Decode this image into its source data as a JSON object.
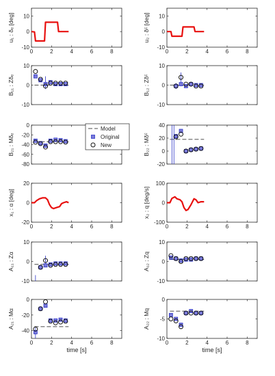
{
  "chart_data": [
    {
      "type": "line",
      "ylabel": "u₁ : δₑ [deg]",
      "ylim": [
        -10,
        15
      ],
      "yticks": [
        -10,
        0,
        10
      ],
      "xlim": [
        0,
        9
      ],
      "xticks": [
        0,
        2,
        4,
        6,
        8
      ],
      "x_tick_labels": true,
      "series": [
        {
          "type": "line",
          "color": "#e8100f",
          "points": [
            [
              0,
              0
            ],
            [
              0.3,
              -0.2
            ],
            [
              0.4,
              -6
            ],
            [
              1.3,
              -6
            ],
            [
              1.4,
              6
            ],
            [
              2.6,
              6
            ],
            [
              2.7,
              0
            ],
            [
              3.7,
              0
            ]
          ]
        }
      ]
    },
    {
      "type": "line",
      "ylabel": "u₂ : δᶜ [deg]",
      "ylim": [
        -10,
        15
      ],
      "yticks": [
        -10,
        0,
        10
      ],
      "xlim": [
        0,
        9
      ],
      "xticks": [
        0,
        2,
        4,
        6,
        8
      ],
      "x_tick_labels": true,
      "series": [
        {
          "type": "line",
          "color": "#e8100f",
          "points": [
            [
              0,
              0
            ],
            [
              0.4,
              0
            ],
            [
              0.5,
              -3
            ],
            [
              1.5,
              -3
            ],
            [
              1.6,
              3
            ],
            [
              2.7,
              3
            ],
            [
              2.8,
              0
            ],
            [
              3.7,
              0
            ]
          ]
        }
      ]
    },
    {
      "type": "scatter",
      "ylabel": "B₁₁ : Zδₑ",
      "ylim": [
        -10,
        10
      ],
      "yticks": [
        -10,
        0,
        10
      ],
      "xlim": [
        0,
        9
      ],
      "xticks": [
        0,
        2,
        4,
        6,
        8
      ],
      "x_tick_labels": false,
      "model_line": {
        "value": 0,
        "x0": 0.3,
        "x1": 3.7
      },
      "original": [
        [
          0.4,
          4.5
        ],
        [
          0.9,
          2.5
        ],
        [
          1.4,
          0.5
        ],
        [
          1.9,
          1.5
        ],
        [
          2.4,
          0.5
        ],
        [
          2.9,
          0.5
        ],
        [
          3.4,
          0.5
        ]
      ],
      "new": [
        [
          0.4,
          7
        ],
        [
          0.9,
          3
        ],
        [
          1.4,
          -0.5
        ],
        [
          1.9,
          1
        ],
        [
          2.4,
          1
        ],
        [
          2.9,
          1
        ],
        [
          3.4,
          1
        ]
      ],
      "errorbars": [
        [
          1.4,
          -2,
          4.5
        ]
      ]
    },
    {
      "type": "scatter",
      "ylabel": "B₁₂ : Zδᶜ",
      "ylim": [
        -10,
        10
      ],
      "yticks": [
        -10,
        0,
        10
      ],
      "xlim": [
        0,
        9
      ],
      "xticks": [
        0,
        2,
        4,
        6,
        8
      ],
      "x_tick_labels": false,
      "model_line": {
        "value": 0,
        "x0": 0.3,
        "x1": 3.7
      },
      "original": [
        [
          0.9,
          -0.5
        ],
        [
          1.4,
          0.5
        ],
        [
          1.9,
          -0.5
        ],
        [
          2.4,
          0.5
        ],
        [
          2.9,
          0
        ],
        [
          3.4,
          0
        ]
      ],
      "new": [
        [
          0.9,
          -0.5
        ],
        [
          1.4,
          4
        ],
        [
          1.9,
          0.5
        ],
        [
          2.4,
          0.5
        ],
        [
          2.9,
          -0.5
        ],
        [
          3.4,
          -0.5
        ]
      ],
      "errorbars": [
        [
          1.4,
          1.5,
          6.5
        ],
        [
          0.9,
          -2,
          1
        ]
      ]
    },
    {
      "type": "scatter",
      "ylabel": "B₂₁ : Mδₑ",
      "ylim": [
        -80,
        0
      ],
      "yticks": [
        -80,
        -60,
        -40,
        -20,
        0
      ],
      "xlim": [
        0,
        9
      ],
      "xticks": [
        0,
        2,
        4,
        6,
        8
      ],
      "x_tick_labels": false,
      "model_line": {
        "value": -34,
        "x0": 0.3,
        "x1": 3.7
      },
      "original": [
        [
          0.4,
          -32
        ],
        [
          0.9,
          -37
        ],
        [
          1.4,
          -42
        ],
        [
          1.9,
          -32
        ],
        [
          2.4,
          -30
        ],
        [
          2.9,
          -31
        ],
        [
          3.4,
          -33
        ]
      ],
      "new": [
        [
          0.4,
          -35
        ],
        [
          0.9,
          -38
        ],
        [
          1.4,
          -45
        ],
        [
          1.9,
          -34
        ],
        [
          2.4,
          -34
        ],
        [
          2.9,
          -34
        ],
        [
          3.4,
          -35
        ]
      ],
      "errorbars": [],
      "legend": {
        "position": "top-right",
        "entries": [
          "Model",
          "Original",
          "New"
        ]
      }
    },
    {
      "type": "scatter",
      "ylabel": "B₂₂ : Mδᶜ",
      "ylim": [
        -20,
        40
      ],
      "yticks": [
        -20,
        0,
        20,
        40
      ],
      "xlim": [
        0,
        9
      ],
      "xticks": [
        0,
        2,
        4,
        6,
        8
      ],
      "x_tick_labels": false,
      "model_line": {
        "value": 18,
        "x0": 0.3,
        "x1": 3.7
      },
      "original": [
        [
          0.9,
          23
        ],
        [
          1.4,
          31
        ],
        [
          1.9,
          0
        ],
        [
          2.4,
          2
        ],
        [
          2.9,
          3
        ],
        [
          3.4,
          4
        ]
      ],
      "new": [
        [
          0.9,
          22
        ],
        [
          1.4,
          26
        ],
        [
          1.9,
          0
        ],
        [
          2.4,
          2
        ],
        [
          2.9,
          3
        ],
        [
          3.4,
          4
        ]
      ],
      "errorbars": [
        [
          0.5,
          -20,
          40
        ],
        [
          0.7,
          -20,
          40
        ]
      ]
    },
    {
      "type": "line",
      "ylabel": "x₁ : α [deg]",
      "ylim": [
        -20,
        20
      ],
      "yticks": [
        -20,
        0,
        20
      ],
      "xlim": [
        0,
        9
      ],
      "xticks": [
        0,
        2,
        4,
        6,
        8
      ],
      "x_tick_labels": true,
      "series": [
        {
          "type": "line",
          "color": "#e8100f",
          "points": [
            [
              0,
              0
            ],
            [
              0.3,
              0
            ],
            [
              0.5,
              2
            ],
            [
              0.8,
              4
            ],
            [
              1.1,
              5
            ],
            [
              1.4,
              5
            ],
            [
              1.6,
              3
            ],
            [
              1.8,
              -2
            ],
            [
              2.0,
              -5
            ],
            [
              2.2,
              -6
            ],
            [
              2.5,
              -5
            ],
            [
              2.8,
              -4
            ],
            [
              3.0,
              -1
            ],
            [
              3.2,
              0
            ],
            [
              3.5,
              1
            ],
            [
              3.7,
              0
            ]
          ]
        }
      ]
    },
    {
      "type": "line",
      "ylabel": "x₂ : q [deg/s]",
      "ylim": [
        -100,
        100
      ],
      "yticks": [
        -100,
        0,
        100
      ],
      "xlim": [
        0,
        9
      ],
      "xticks": [
        0,
        2,
        4,
        6,
        8
      ],
      "x_tick_labels": true,
      "series": [
        {
          "type": "line",
          "color": "#e8100f",
          "points": [
            [
              0,
              0
            ],
            [
              0.3,
              0
            ],
            [
              0.5,
              22
            ],
            [
              0.8,
              30
            ],
            [
              1.0,
              20
            ],
            [
              1.3,
              15
            ],
            [
              1.5,
              5
            ],
            [
              1.7,
              -25
            ],
            [
              1.9,
              -40
            ],
            [
              2.1,
              -35
            ],
            [
              2.4,
              -10
            ],
            [
              2.7,
              20
            ],
            [
              2.9,
              15
            ],
            [
              3.1,
              0
            ],
            [
              3.4,
              5
            ],
            [
              3.7,
              5
            ]
          ]
        }
      ]
    },
    {
      "type": "scatter",
      "ylabel": "A₁₁ : Zα",
      "ylim": [
        -10,
        10
      ],
      "yticks": [
        -10,
        0,
        10
      ],
      "xlim": [
        0,
        9
      ],
      "xticks": [
        0,
        2,
        4,
        6,
        8
      ],
      "x_tick_labels": false,
      "model_line": {
        "value": -1.5,
        "x0": 0.3,
        "x1": 3.7
      },
      "original": [
        [
          0.9,
          -3
        ],
        [
          1.4,
          -2
        ],
        [
          1.9,
          -1.5
        ],
        [
          2.4,
          -1
        ],
        [
          2.9,
          -1
        ],
        [
          3.4,
          -1
        ]
      ],
      "new": [
        [
          0.9,
          -3
        ],
        [
          1.4,
          0.5
        ],
        [
          1.9,
          -2
        ],
        [
          2.4,
          -1.5
        ],
        [
          2.9,
          -1.5
        ],
        [
          3.4,
          -1.5
        ]
      ],
      "errorbars": [
        [
          1.4,
          -2,
          3
        ],
        [
          0.4,
          -10,
          -7
        ]
      ]
    },
    {
      "type": "scatter",
      "ylabel": "A₁₂ : Zq",
      "ylim": [
        -10,
        10
      ],
      "yticks": [
        -10,
        0,
        10
      ],
      "xlim": [
        0,
        9
      ],
      "xticks": [
        0,
        2,
        4,
        6,
        8
      ],
      "x_tick_labels": false,
      "model_line": {
        "value": 1,
        "x0": 0.3,
        "x1": 3.7
      },
      "original": [
        [
          0.4,
          2
        ],
        [
          0.9,
          1.5
        ],
        [
          1.4,
          0.5
        ],
        [
          1.9,
          1
        ],
        [
          2.4,
          1
        ],
        [
          2.9,
          1.5
        ],
        [
          3.4,
          1.5
        ]
      ],
      "new": [
        [
          0.4,
          3
        ],
        [
          0.9,
          1.5
        ],
        [
          1.4,
          0
        ],
        [
          1.9,
          1.5
        ],
        [
          2.4,
          1.5
        ],
        [
          2.9,
          1.5
        ],
        [
          3.4,
          1.5
        ]
      ],
      "errorbars": []
    },
    {
      "type": "scatter",
      "ylabel": "A₂₁ : Mα",
      "ylim": [
        -50,
        0
      ],
      "yticks": [
        -40,
        -20,
        0
      ],
      "xlim": [
        0,
        9
      ],
      "xticks": [
        0,
        2,
        4,
        6,
        8
      ],
      "x_tick_labels": false,
      "model_line": {
        "value": -35,
        "x0": 0.3,
        "x1": 3.7
      },
      "original": [
        [
          0.4,
          -42
        ],
        [
          0.9,
          -12
        ],
        [
          1.4,
          -8
        ],
        [
          1.9,
          -27
        ],
        [
          2.4,
          -27
        ],
        [
          2.9,
          -26
        ],
        [
          3.4,
          -27
        ]
      ],
      "new": [
        [
          0.4,
          -38
        ],
        [
          0.9,
          -12
        ],
        [
          1.4,
          -3
        ],
        [
          1.9,
          -28
        ],
        [
          2.4,
          -30
        ],
        [
          2.9,
          -29
        ],
        [
          3.4,
          -28
        ]
      ],
      "errorbars": [
        [
          0.4,
          -50,
          -36
        ]
      ]
    },
    {
      "type": "scatter",
      "ylabel": "A₂₂ : Mq",
      "ylim": [
        -10,
        0
      ],
      "yticks": [
        -10,
        -5,
        0
      ],
      "xlim": [
        0,
        9
      ],
      "xticks": [
        0,
        2,
        4,
        6,
        8
      ],
      "x_tick_labels": false,
      "model_line": {
        "value": -3,
        "x0": 0.3,
        "x1": 3.7
      },
      "original": [
        [
          0.4,
          -4
        ],
        [
          0.9,
          -5
        ],
        [
          1.4,
          -6.5
        ],
        [
          1.9,
          -3.5
        ],
        [
          2.4,
          -3
        ],
        [
          2.9,
          -3.5
        ],
        [
          3.4,
          -3.5
        ]
      ],
      "new": [
        [
          0.4,
          -5
        ],
        [
          0.9,
          -5.5
        ],
        [
          1.4,
          -7
        ],
        [
          1.9,
          -3.5
        ],
        [
          2.4,
          -3.5
        ],
        [
          2.9,
          -3.5
        ],
        [
          3.4,
          -3.5
        ]
      ],
      "errorbars": []
    }
  ],
  "xlabel": "time [s]",
  "legend_labels": {
    "model": "Model",
    "original": "Original",
    "new": "New"
  },
  "colors": {
    "input": "#e8100f",
    "original_face": "#7b7bd9",
    "original_edge": "#2d35c8",
    "new_edge": "#111111",
    "model": "#111111",
    "axis": "#262626"
  }
}
